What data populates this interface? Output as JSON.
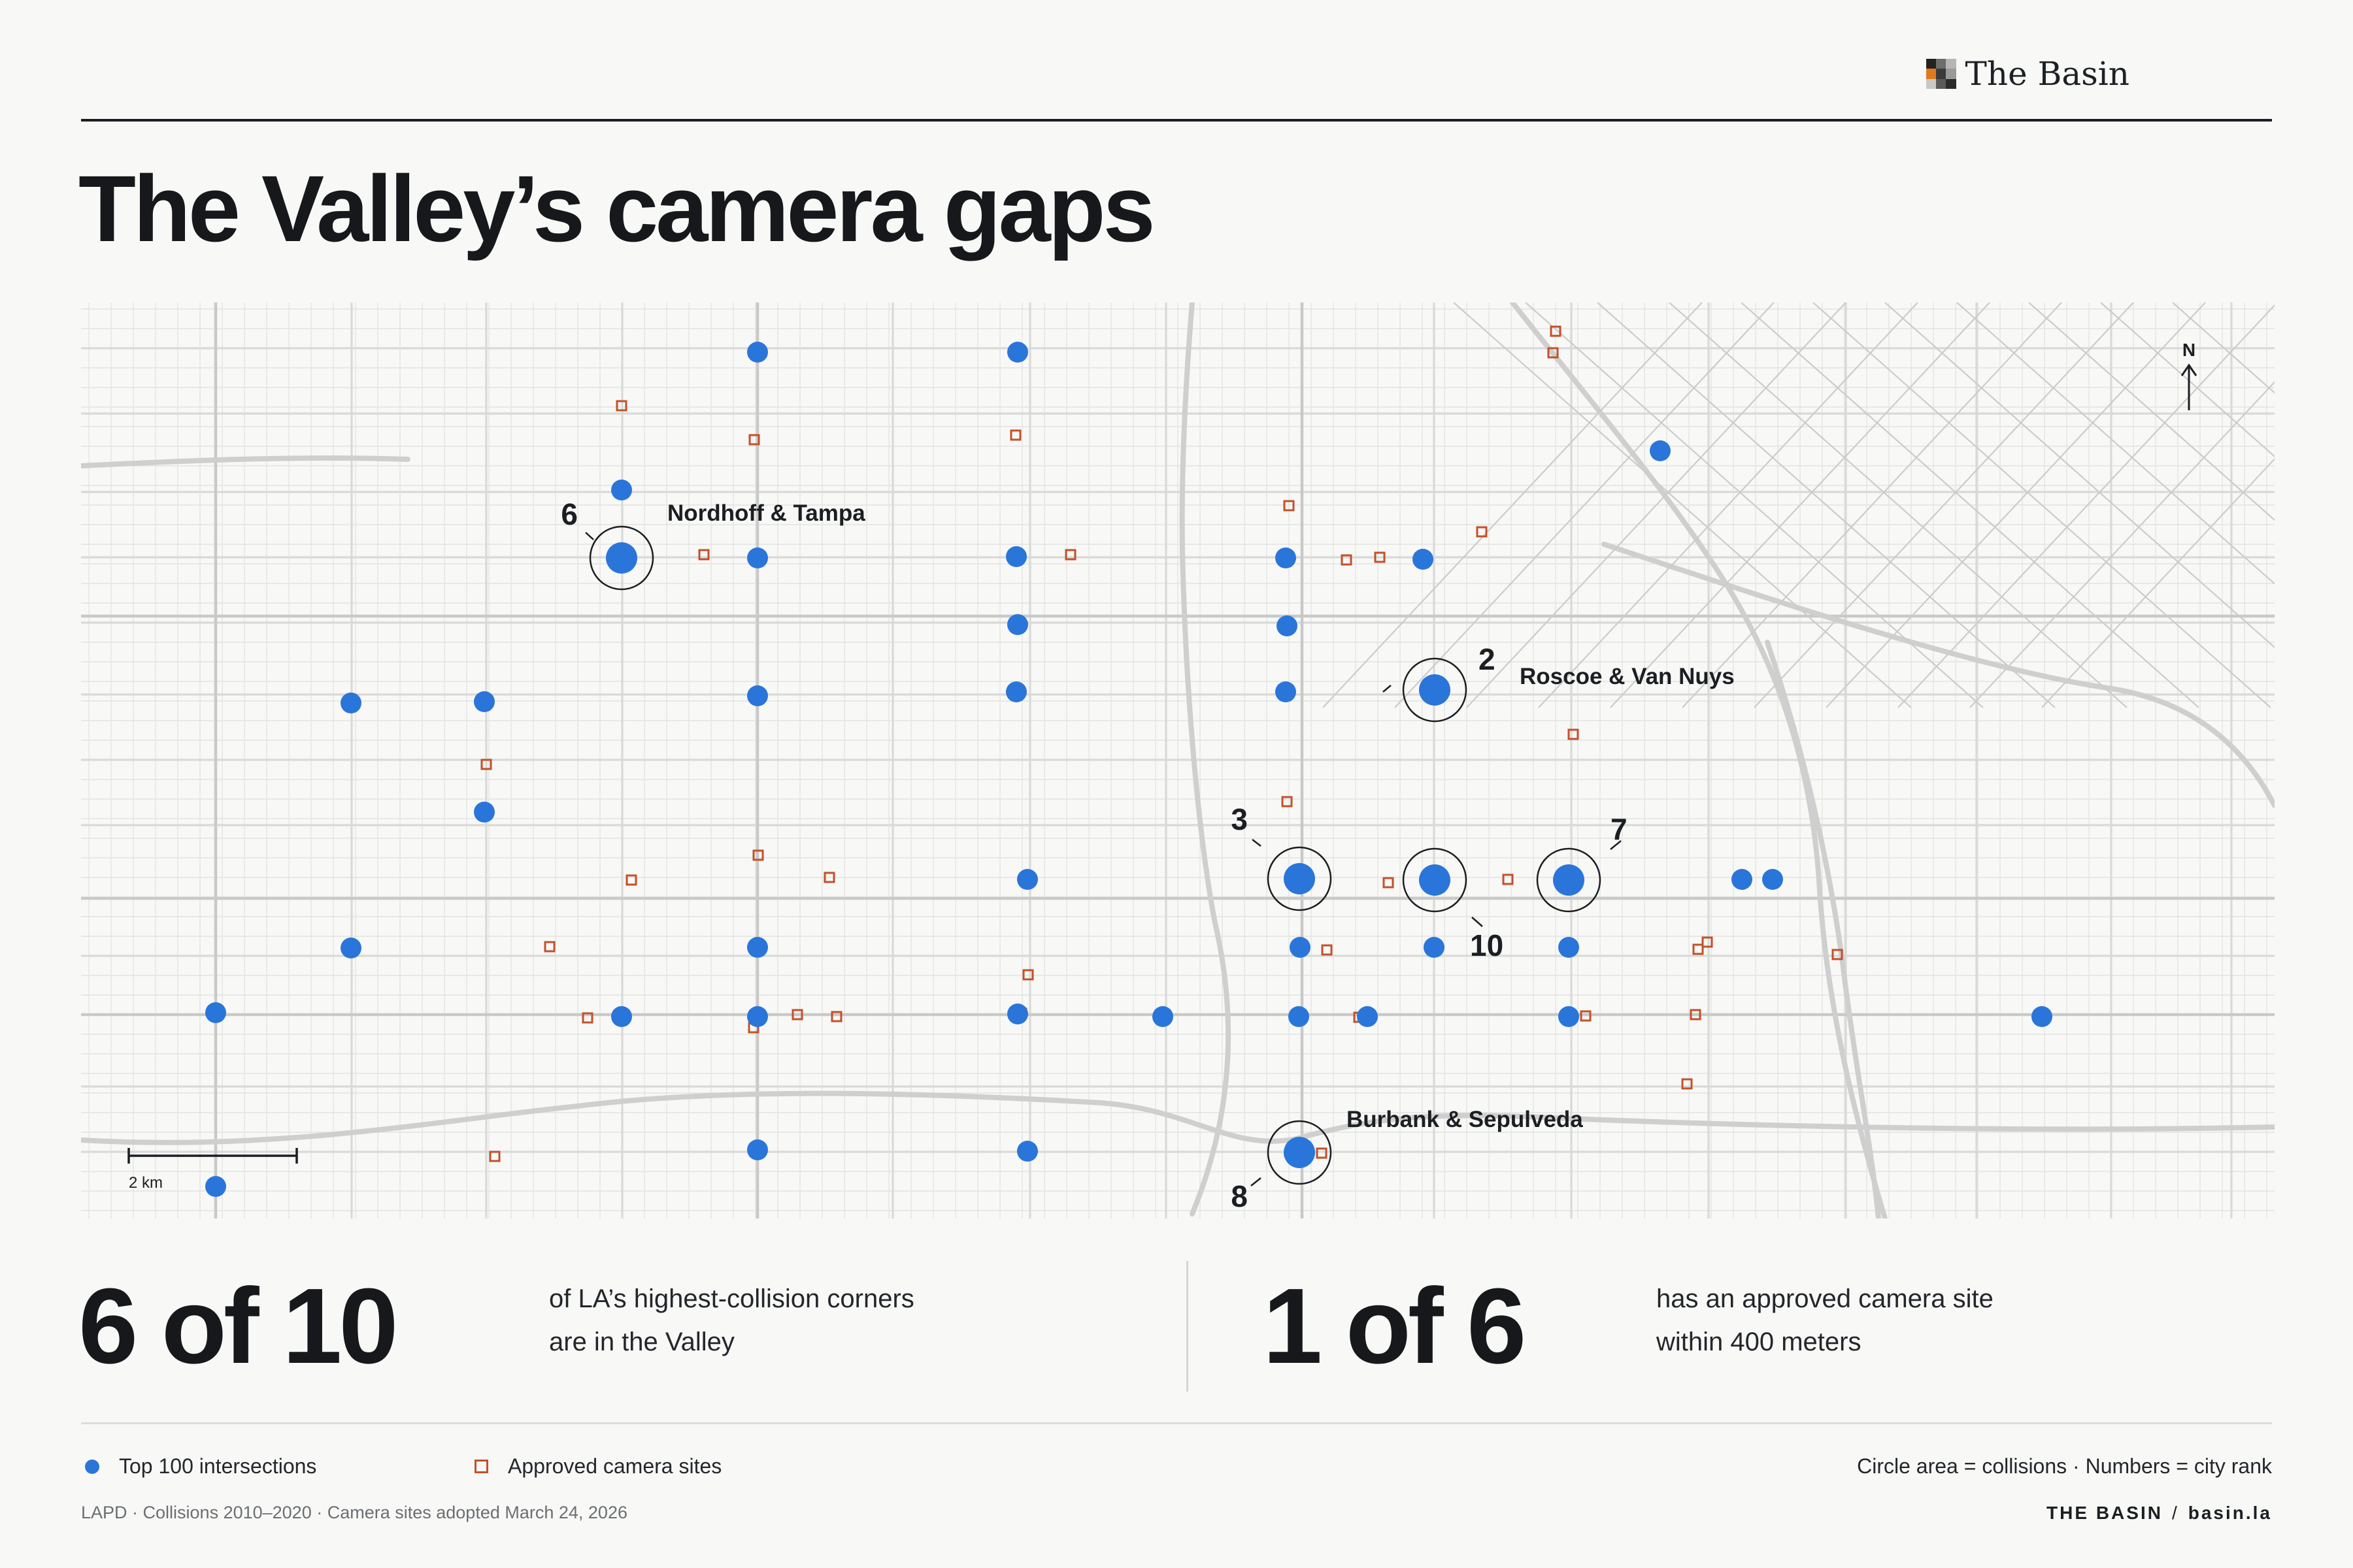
{
  "brand": {
    "name": "The Basin",
    "logo_colors": [
      "#222222",
      "#6d6d6d",
      "#b5b5b5",
      "#e07a1f",
      "#3a3a3a",
      "#9a9a9a",
      "#c8c8c8",
      "#5a5a5a",
      "#2b2b2b"
    ]
  },
  "title": "The Valley’s camera gaps",
  "map": {
    "north_label": "N",
    "scale_label": "2 km",
    "colors": {
      "intersection": "#2a75d9",
      "camera": "#c2512a",
      "ring": "#1b1e22",
      "road_major": "#c9c9c9",
      "road_minor": "#d9d9d9",
      "freeway": "#cfcfcf"
    },
    "labeled_intersections": [
      {
        "name": "Nordhoff & Tampa",
        "rank": "6"
      },
      {
        "name": "Roscoe & Van Nuys",
        "rank": "2"
      },
      {
        "name": "Burbank & Sepulveda",
        "rank": "8"
      }
    ],
    "other_ranks": [
      "3",
      "10",
      "7"
    ]
  },
  "stats": [
    {
      "big": "6 of 10",
      "line1": "of LA’s highest-collision corners",
      "line2": "are in the Valley"
    },
    {
      "big": "1 of 6",
      "line1": "has an approved camera site",
      "line2": "within 400 meters"
    }
  ],
  "legend": {
    "intersections_label": "Top 100 intersections",
    "cameras_label": "Approved camera sites",
    "note": "Circle area = collisions · Numbers = city rank"
  },
  "source": "LAPD · Collisions 2010–2020 · Camera sites adopted March 24, 2026",
  "credit": {
    "publisher": "THE BASIN",
    "separator": "/",
    "url": "basin.la"
  }
}
